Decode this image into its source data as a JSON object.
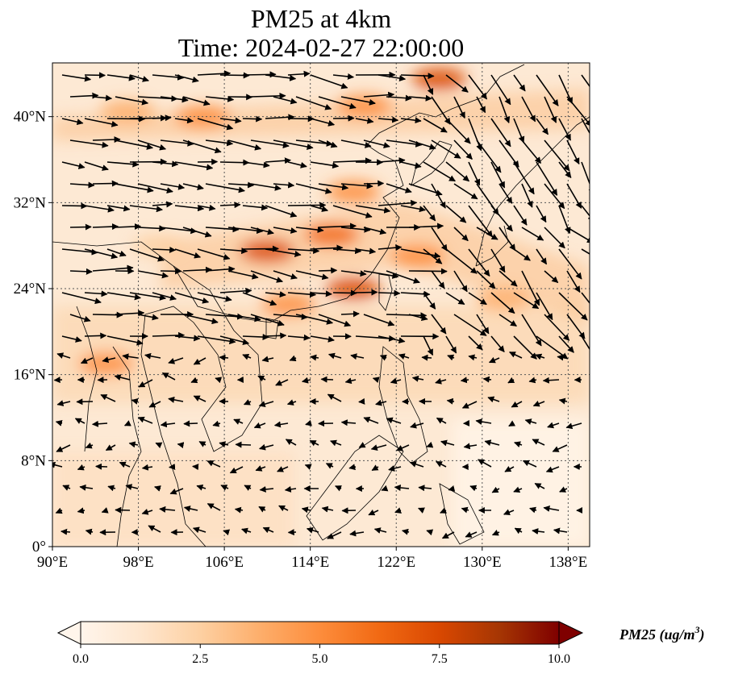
{
  "title": {
    "line1": "PM25 at 4km",
    "line2": "Time: 2024-02-27 22:00:00"
  },
  "map": {
    "lon_range": [
      90,
      140
    ],
    "lat_range": [
      0,
      45
    ],
    "x_ticks": [
      {
        "value": 90,
        "label": "90°E"
      },
      {
        "value": 98,
        "label": "98°E"
      },
      {
        "value": 106,
        "label": "106°E"
      },
      {
        "value": 114,
        "label": "114°E"
      },
      {
        "value": 122,
        "label": "122°E"
      },
      {
        "value": 130,
        "label": "130°E"
      },
      {
        "value": 138,
        "label": "138°E"
      }
    ],
    "y_ticks": [
      {
        "value": 0,
        "label": "0°"
      },
      {
        "value": 8,
        "label": "8°N"
      },
      {
        "value": 16,
        "label": "16°N"
      },
      {
        "value": 24,
        "label": "24°N"
      },
      {
        "value": 32,
        "label": "32°N"
      },
      {
        "value": 40,
        "label": "40°N"
      }
    ],
    "gridlines": true,
    "plumes": [
      {
        "lon": 110,
        "lat": 27.5,
        "intensity": 0.75
      },
      {
        "lon": 116,
        "lat": 29,
        "intensity": 0.6
      },
      {
        "lon": 118,
        "lat": 24,
        "intensity": 0.7
      },
      {
        "lon": 112,
        "lat": 22.5,
        "intensity": 0.55
      },
      {
        "lon": 126,
        "lat": 43.5,
        "intensity": 0.8
      },
      {
        "lon": 119,
        "lat": 41,
        "intensity": 0.55
      },
      {
        "lon": 104,
        "lat": 40,
        "intensity": 0.45
      },
      {
        "lon": 97,
        "lat": 40.5,
        "intensity": 0.35
      },
      {
        "lon": 124,
        "lat": 27,
        "intensity": 0.5
      },
      {
        "lon": 132,
        "lat": 23,
        "intensity": 0.35
      },
      {
        "lon": 100,
        "lat": 28,
        "intensity": 0.3
      },
      {
        "lon": 95,
        "lat": 17,
        "intensity": 0.5
      },
      {
        "lon": 118,
        "lat": 33,
        "intensity": 0.45
      }
    ]
  },
  "colorbar": {
    "min": 0.0,
    "max": 10.0,
    "ticks": [
      {
        "value": 0.0,
        "label": "0.0"
      },
      {
        "value": 2.5,
        "label": "2.5"
      },
      {
        "value": 5.0,
        "label": "5.0"
      },
      {
        "value": 7.5,
        "label": "7.5"
      },
      {
        "value": 10.0,
        "label": "10.0"
      }
    ],
    "label": "PM25 (ug/m",
    "label_superscript": "3",
    "label_suffix": ")",
    "extend": "both",
    "colors": [
      "#fff5eb",
      "#fee6ce",
      "#fdd0a2",
      "#fdae6b",
      "#fd8d3c",
      "#f16913",
      "#d94801",
      "#a63603",
      "#7f0000"
    ]
  }
}
